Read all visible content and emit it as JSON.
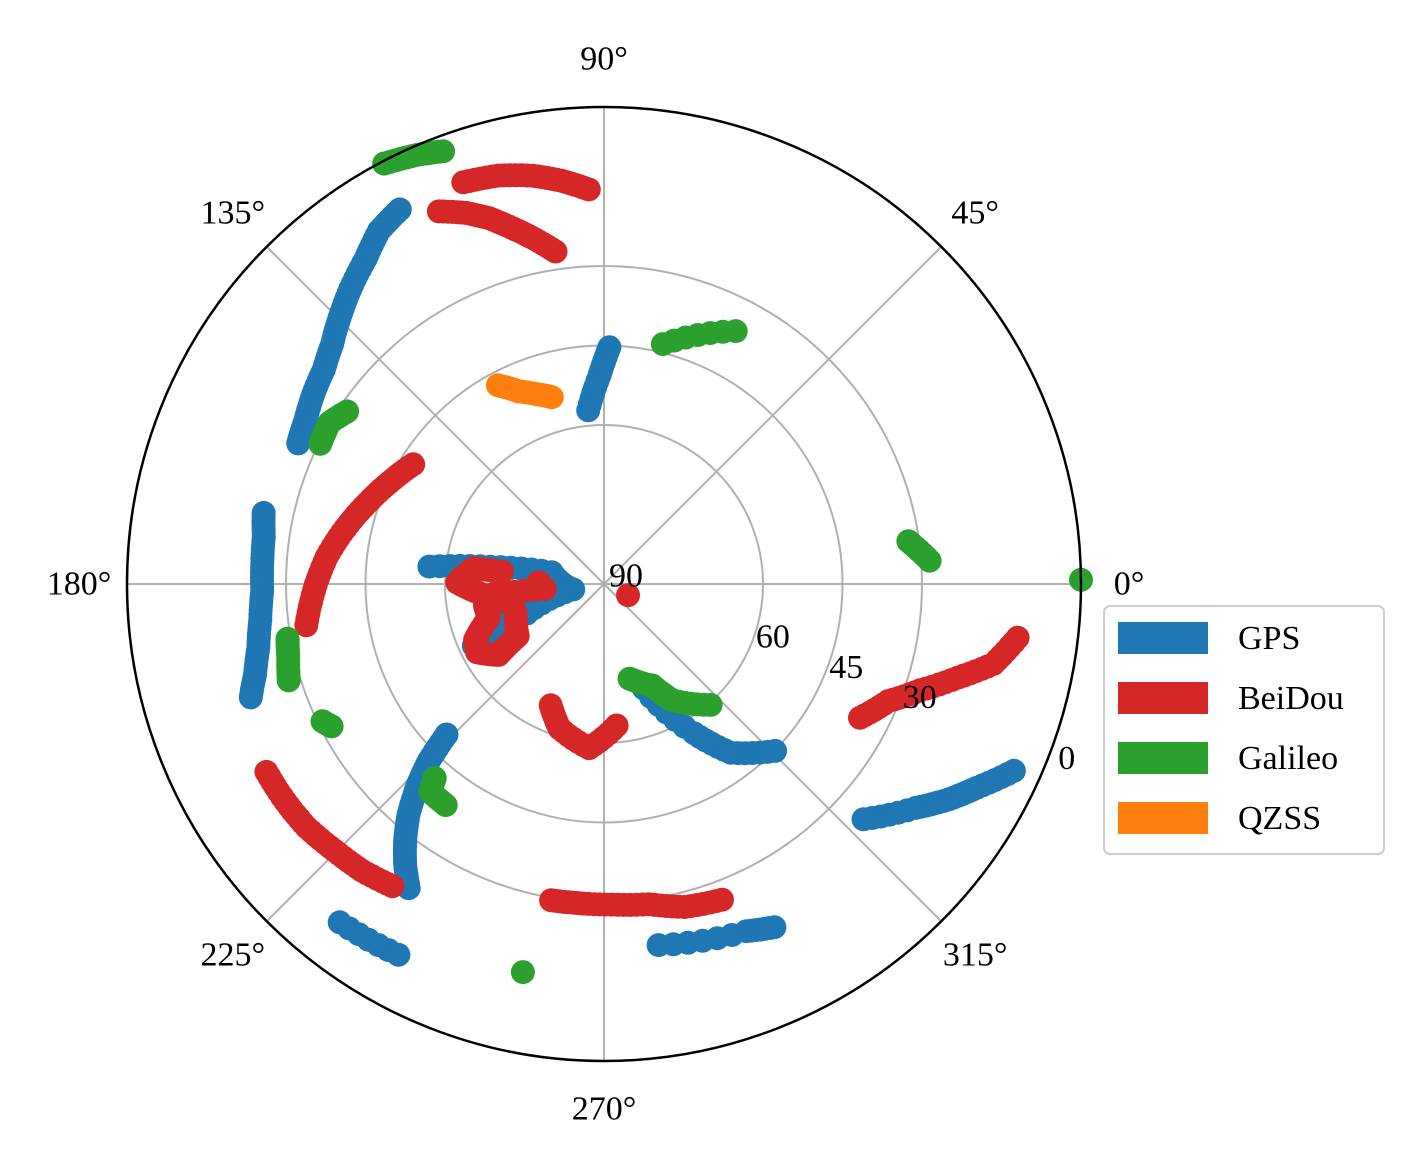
{
  "chart_data": {
    "type": "scatter",
    "projection": "polar",
    "theta_unit": "degrees",
    "r_axis": "elevation",
    "elevation_range": [
      0,
      90
    ],
    "center_elevation": 90,
    "grid": true,
    "angle_ticks": [
      0,
      45,
      90,
      135,
      180,
      225,
      270,
      315
    ],
    "angle_tick_labels": [
      "0°",
      "45°",
      "90°",
      "135°",
      "180°",
      "225°",
      "270°",
      "315°"
    ],
    "elevation_ticks": [
      90,
      60,
      45,
      30,
      0
    ],
    "elevation_tick_labels": [
      "90",
      "60",
      "45",
      "30",
      "0"
    ],
    "radial_label_angle": -22.5,
    "legend": {
      "placement": "right",
      "entries": [
        {
          "label": "GPS",
          "color": "#1f77b4"
        },
        {
          "label": "BeiDou",
          "color": "#d62728"
        },
        {
          "label": "Galileo",
          "color": "#2ca02c"
        },
        {
          "label": "QZSS",
          "color": "#ff7f0e"
        }
      ]
    },
    "series": [
      {
        "name": "GPS",
        "color": "#1f77b4",
        "tracks": [
          [
            [
              88.7,
              45.3
            ],
            [
              91.2,
              50.6
            ],
            [
              95.2,
              57.1
            ]
          ],
          [
            [
              118.6,
              9.5
            ],
            [
              122.5,
              11.0
            ],
            [
              126.2,
              13.9
            ],
            [
              130.7,
              16.6
            ],
            [
              134.8,
              19.2
            ],
            [
              138.6,
              21.6
            ],
            [
              142.5,
              23.4
            ],
            [
              146.9,
              24.5
            ],
            [
              151.1,
              25.7
            ],
            [
              155.3,
              26.5
            ]
          ],
          [
            [
              168.2,
              24.4
            ],
            [
              172.1,
              25.2
            ],
            [
              176.5,
              25.4
            ],
            [
              181.2,
              25.5
            ],
            [
              185.9,
              24.8
            ],
            [
              190.4,
              23.7
            ],
            [
              194.5,
              22.0
            ],
            [
              197.8,
              20.0
            ]
          ],
          [
            [
              174.3,
              56.9
            ],
            [
              171.4,
              68.3
            ],
            [
              167.4,
              79.9
            ],
            [
              190.0,
              84.1
            ],
            [
              200.9,
              74.4
            ],
            [
              205.4,
              62.8
            ]
          ],
          [
            [
              197.3,
              72.0
            ],
            [
              200.0,
              65.6
            ]
          ],
          [
            [
              223.7,
              48.9
            ],
            [
              225.3,
              43.0
            ],
            [
              227.2,
              38.2
            ],
            [
              229.7,
              33.0
            ],
            [
              232.0,
              29.1
            ],
            [
              234.6,
              25.2
            ],
            [
              237.3,
              21.8
            ]
          ],
          [
            [
              241.0,
              10.0
            ],
            [
              232.0,
              9.0
            ]
          ],
          [
            [
              317.8,
              23.9
            ],
            [
              324.3,
              17.6
            ],
            [
              328.0,
              13.3
            ],
            [
              331.3,
              9.9
            ],
            [
              335.5,
              5.0
            ]
          ],
          [
            [
              290.9,
              68.9
            ],
            [
              301.1,
              57.1
            ],
            [
              306.9,
              50.2
            ],
            [
              315.7,
              44.9
            ]
          ],
          [
            [
              278.6,
              21.1
            ],
            [
              292.3,
              19.2
            ],
            [
              296.4,
              17.7
            ]
          ]
        ]
      },
      {
        "name": "BeiDou",
        "color": "#d62728",
        "tracks": [
          [
            [
              98.3,
              26.6
            ],
            [
              101.9,
              23.1
            ],
            [
              104.5,
              20.6
            ],
            [
              107.4,
              17.7
            ],
            [
              110.4,
              15.3
            ],
            [
              113.9,
              13.1
            ]
          ],
          [
            [
              92.2,
              15.5
            ],
            [
              96.0,
              13.5
            ],
            [
              99.9,
              11.8
            ],
            [
              104.5,
              10.4
            ],
            [
              109.3,
              9.7
            ]
          ],
          [
            [
              147.9,
              47.5
            ],
            [
              154.7,
              45.2
            ],
            [
              161.1,
              42.8
            ],
            [
              167.8,
              40.1
            ],
            [
              174.5,
              37.4
            ],
            [
              181.2,
              35.3
            ],
            [
              187.9,
              33.3
            ]
          ],
          [
            [
              173.1,
              70.6
            ],
            [
              173.1,
              65.3
            ],
            [
              179.4,
              62.3
            ],
            [
              185.1,
              67.2
            ],
            [
              184.7,
              78.8
            ],
            [
              178.5,
              77.7
            ]
          ],
          [
            [
              189.0,
              72.4
            ],
            [
              190.1,
              67.2
            ],
            [
              196.5,
              67.3
            ],
            [
              203.4,
              63.5
            ],
            [
              208.3,
              62.8
            ],
            [
              213.9,
              66.0
            ],
            [
              211.0,
              71.0
            ],
            [
              198.0,
              72.5
            ]
          ],
          [
            [
              209.1,
              17.1
            ],
            [
              214.3,
              17.2
            ],
            [
              219.3,
              17.5
            ],
            [
              224.7,
              18.5
            ],
            [
              229.8,
              19.2
            ],
            [
              235.0,
              20.4
            ]
          ],
          [
            [
              246.3,
              65.0
            ],
            [
              252.9,
              61.5
            ],
            [
              264.8,
              58.9
            ],
            [
              275.1,
              63.2
            ]
          ],
          [
            [
              260.5,
              29.5
            ],
            [
              265.1,
              29.6
            ],
            [
              271.3,
              29.5
            ],
            [
              278.0,
              29.0
            ],
            [
              284.0,
              27.2
            ],
            [
              290.5,
              26.4
            ]
          ],
          [
            [
              332.4,
              35.5
            ],
            [
              337.6,
              32.0
            ],
            [
              341.4,
              27.1
            ],
            [
              345.2,
              20.9
            ],
            [
              348.4,
              15.0
            ],
            [
              352.6,
              11.3
            ]
          ],
          [
            [
              335.0,
              85.0
            ]
          ]
        ]
      },
      {
        "name": "Galileo",
        "color": "#2ca02c",
        "tracks": [
          [
            [
              110.4,
              2.9
            ],
            [
              113.5,
              1.7
            ],
            [
              117.6,
              0.5
            ]
          ],
          [
            [
              76.2,
              43.4
            ],
            [
              62.5,
              36.2
            ]
          ],
          [
            [
              146.1,
              31.6
            ],
            [
              149.6,
              29.9
            ],
            [
              153.7,
              30.3
            ]
          ],
          [
            [
              189.8,
              29.4
            ],
            [
              192.8,
              28.9
            ],
            [
              197.0,
              27.8
            ]
          ],
          [
            [
              206.0,
              30.9
            ],
            [
              207.6,
              32.0
            ]
          ],
          [
            [
              228.9,
              41.4
            ],
            [
              230.1,
              38.9
            ],
            [
              234.4,
              38.7
            ]
          ],
          [
            [
              258.2,
              15.2
            ]
          ],
          [
            [
              285.1,
              71.5
            ],
            [
              295.4,
              68.8
            ],
            [
              300.4,
              64.6
            ],
            [
              311.4,
              59.6
            ]
          ],
          [
            [
              8.0,
              32.0
            ],
            [
              4.1,
              28.4
            ]
          ],
          [
            [
              0.5,
              0.0
            ]
          ]
        ]
      },
      {
        "name": "QZSS",
        "color": "#ff7f0e",
        "tracks": [
          [
            [
              118.1,
              47.5
            ],
            [
              113.8,
              50.3
            ],
            [
              109.5,
              52.0
            ],
            [
              105.6,
              53.4
            ]
          ]
        ]
      }
    ]
  }
}
